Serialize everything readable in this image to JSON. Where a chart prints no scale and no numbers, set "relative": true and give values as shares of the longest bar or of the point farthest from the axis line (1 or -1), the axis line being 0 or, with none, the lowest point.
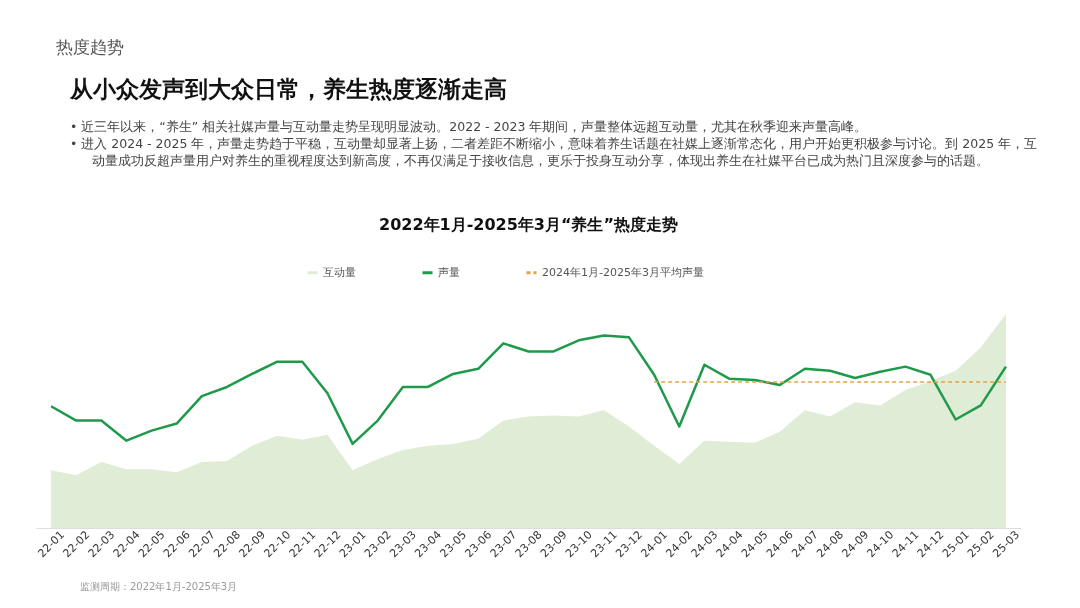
{
  "chart_data": {
    "type": "area",
    "title": "2022年1月-2025年3月“养生”热度走势",
    "relative": true,
    "legend": "top",
    "categories": [
      "22-01",
      "22-02",
      "22-03",
      "22-04",
      "22-05",
      "22-06",
      "22-07",
      "22-08",
      "22-09",
      "22-10",
      "22-11",
      "22-12",
      "23-01",
      "23-02",
      "23-03",
      "23-04",
      "23-05",
      "23-06",
      "23-07",
      "23-08",
      "23-09",
      "23-10",
      "23-11",
      "23-12",
      "24-01",
      "24-02",
      "24-03",
      "24-04",
      "24-05",
      "24-06",
      "24-07",
      "24-08",
      "24-09",
      "24-10",
      "24-11",
      "24-12",
      "25-01",
      "25-02",
      "25-03"
    ],
    "series": [
      {
        "name": "互动量",
        "color": "#dfecd6",
        "values": [
          0.27,
          0.246,
          0.308,
          0.275,
          0.275,
          0.261,
          0.308,
          0.313,
          0.384,
          0.431,
          0.412,
          0.436,
          0.27,
          0.322,
          0.365,
          0.384,
          0.393,
          0.417,
          0.502,
          0.521,
          0.526,
          0.521,
          0.55,
          0.474,
          0.384,
          0.299,
          0.408,
          0.403,
          0.398,
          0.45,
          0.55,
          0.521,
          0.588,
          0.573,
          0.645,
          0.687,
          0.735,
          0.844,
          1
        ]
      },
      {
        "name": "声量",
        "type": "line",
        "color": "#1f9a4b",
        "line_style": "solid",
        "values": [
          0.569,
          0.502,
          0.502,
          0.408,
          0.455,
          0.488,
          0.616,
          0.659,
          0.72,
          0.777,
          0.777,
          0.63,
          0.393,
          0.502,
          0.659,
          0.659,
          0.72,
          0.744,
          0.863,
          0.825,
          0.825,
          0.877,
          0.9,
          0.891,
          0.716,
          0.474,
          0.763,
          0.697,
          0.692,
          0.668,
          0.744,
          0.735,
          0.701,
          0.73,
          0.754,
          0.716,
          0.507,
          0.573,
          0.754
        ]
      },
      {
        "name": "2024年1月-2025年3月平均声量",
        "type": "line",
        "color": "#e3a24a",
        "line_style": "dashed",
        "values": [
          null,
          null,
          null,
          null,
          null,
          null,
          null,
          null,
          null,
          null,
          null,
          null,
          null,
          null,
          null,
          null,
          null,
          null,
          null,
          null,
          null,
          null,
          null,
          null,
          0.682,
          0.682,
          0.682,
          0.682,
          0.682,
          0.682,
          0.682,
          0.682,
          0.682,
          0.682,
          0.682,
          0.682,
          0.682,
          0.682,
          0.682
        ]
      }
    ],
    "annotations": [
      "热度趋势",
      "从小众发声到大众日常，养生热度逐渐走高",
      "• 近三年以来，“养生” 相关社媒声量与互动量走势呈现明显波动。2022 - 2023 年期间，声量整体远超互动量，尤其在秋季迎来声量高峰。",
      "• 进入 2024 - 2025 年，声量走势趋于平稳，互动量却显著上扬，二者差距不断缩小，意味着养生话题在社媒上逐渐常态化，用户开始更积极参与讨论。到 2025 年，互动量成功反超声量用户对养生的重视程度达到新高度，不再仅满足于接收信息，更乐于投身互动分享，体现出养生在社媒平台已成为热门且深度参与的话题。",
      "监测周期：2022年1月-2025年3月"
    ]
  }
}
